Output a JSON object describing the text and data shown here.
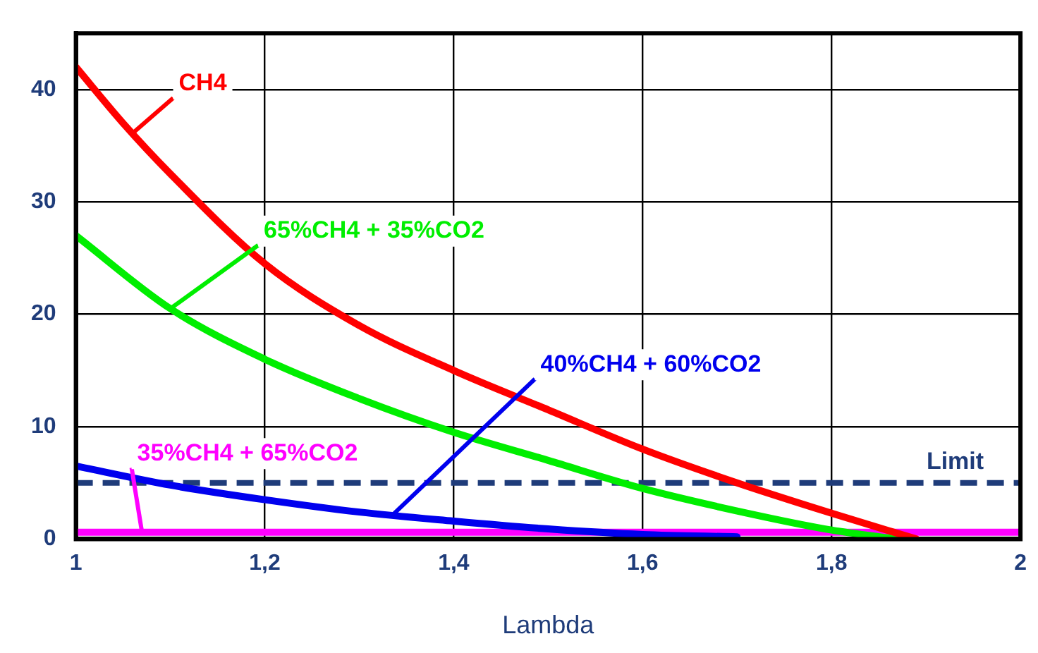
{
  "chart_data": {
    "type": "line",
    "xlabel": "Lambda",
    "xlim": [
      1,
      2
    ],
    "xticks": [
      1,
      {
        "value": 1.2,
        "label": "1,2"
      },
      {
        "value": 1.4,
        "label": "1,4"
      },
      {
        "value": 1.6,
        "label": "1,6"
      },
      {
        "value": 1.8,
        "label": "1,8"
      },
      2
    ],
    "ylim": [
      0,
      45
    ],
    "yticks": [
      0,
      10,
      20,
      30,
      40
    ],
    "grid": true,
    "legend": false,
    "marker": "none",
    "line_style": "solid",
    "series": [
      {
        "name": "CH4",
        "color": "#ff0000",
        "x": [
          1,
          1.05,
          1.1,
          1.2,
          1.3,
          1.4,
          1.5,
          1.6,
          1.7,
          1.8,
          1.89
        ],
        "values": [
          42,
          37,
          32.5,
          24.5,
          19,
          15,
          11.5,
          8,
          5,
          2.3,
          0
        ]
      },
      {
        "name": "65%CH4 + 35%CO2",
        "color": "#00ee00",
        "x": [
          1,
          1.1,
          1.2,
          1.3,
          1.4,
          1.5,
          1.6,
          1.7,
          1.8,
          1.87
        ],
        "values": [
          27,
          20.5,
          16,
          12.5,
          9.5,
          7,
          4.5,
          2.5,
          0.8,
          0
        ]
      },
      {
        "name": "40%CH4 + 60%CO2",
        "color": "#0000ee",
        "x": [
          1,
          1.1,
          1.2,
          1.3,
          1.4,
          1.5,
          1.6,
          1.7
        ],
        "values": [
          6.5,
          4.8,
          3.5,
          2.4,
          1.6,
          0.9,
          0.4,
          0.2
        ]
      },
      {
        "name": "35%CH4 + 65%CO2",
        "color": "#ff00ff",
        "x": [
          1,
          2
        ],
        "values": [
          0.6,
          0.6
        ]
      }
    ],
    "ref_lines": [
      {
        "axis": "y",
        "value": 5,
        "label": "Limit",
        "color": "#1f3c7a",
        "line_style": "dashed"
      }
    ]
  }
}
